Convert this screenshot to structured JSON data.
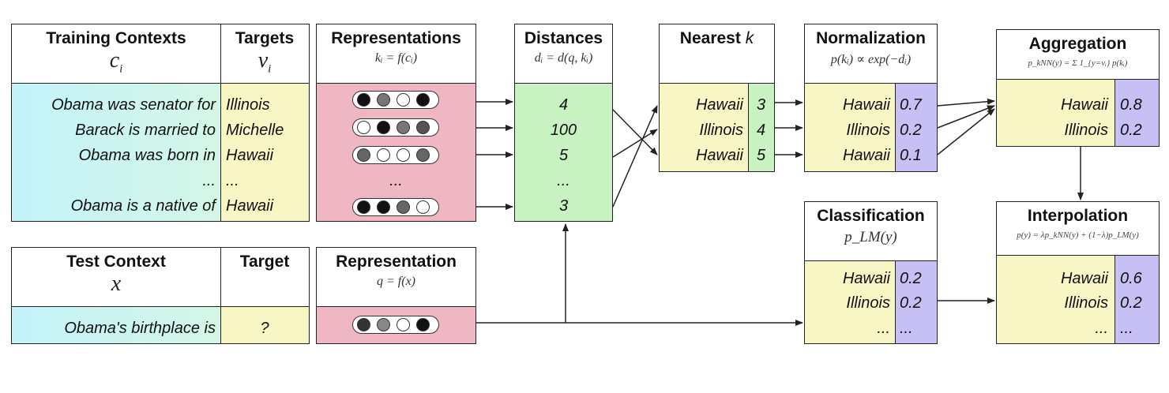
{
  "training": {
    "title": "Training Contexts",
    "symbol": "c",
    "symbol_sub": "i",
    "targets_title": "Targets",
    "targets_symbol": "v",
    "targets_symbol_sub": "i",
    "contexts": [
      "Obama was senator for",
      "Barack is married to",
      "Obama was born in",
      "...",
      "Obama is a native of"
    ],
    "targets": [
      "Illinois",
      "Michelle",
      "Hawaii",
      "...",
      "Hawaii"
    ]
  },
  "representations": {
    "title": "Representations",
    "formula": "kᵢ = f(cᵢ)",
    "ellipsis": "...",
    "pills": [
      [
        "#111",
        "#777",
        "#fff",
        "#111"
      ],
      [
        "#fff",
        "#111",
        "#777",
        "#555"
      ],
      [
        "#666",
        "#fff",
        "#fff",
        "#666"
      ],
      [
        "#111",
        "#111",
        "#666",
        "#fff"
      ]
    ]
  },
  "distances": {
    "title": "Distances",
    "formula": "dᵢ = d(q, kᵢ)",
    "values": [
      "4",
      "100",
      "5",
      "...",
      "3"
    ]
  },
  "nearest": {
    "title": "Nearest",
    "title_k": "k",
    "rows": [
      {
        "label": "Hawaii",
        "value": "3"
      },
      {
        "label": "Illinois",
        "value": "4"
      },
      {
        "label": "Hawaii",
        "value": "5"
      }
    ]
  },
  "normalization": {
    "title": "Normalization",
    "formula": "p(kᵢ) ∝ exp(−dᵢ)",
    "rows": [
      {
        "label": "Hawaii",
        "value": "0.7"
      },
      {
        "label": "Illinois",
        "value": "0.2"
      },
      {
        "label": "Hawaii",
        "value": "0.1"
      }
    ]
  },
  "aggregation": {
    "title": "Aggregation",
    "formula": "p_kNN(y) = Σ 1_{y=vᵢ} p(kᵢ)",
    "rows": [
      {
        "label": "Hawaii",
        "value": "0.8"
      },
      {
        "label": "Illinois",
        "value": "0.2"
      }
    ]
  },
  "test": {
    "title": "Test Context",
    "symbol": "x",
    "target_title": "Target",
    "context": "Obama's birthplace is",
    "target": "?"
  },
  "representation": {
    "title": "Representation",
    "formula": "q = f(x)",
    "pill": [
      "#333",
      "#888",
      "#fff",
      "#111"
    ]
  },
  "classification": {
    "title": "Classification",
    "formula": "p_LM(y)",
    "rows": [
      {
        "label": "Hawaii",
        "value": "0.2"
      },
      {
        "label": "Illinois",
        "value": "0.2"
      },
      {
        "label": "...",
        "value": "..."
      }
    ]
  },
  "interpolation": {
    "title": "Interpolation",
    "formula": "p(y) = λp_kNN(y) + (1−λ)p_LM(y)",
    "rows": [
      {
        "label": "Hawaii",
        "value": "0.6"
      },
      {
        "label": "Illinois",
        "value": "0.2"
      },
      {
        "label": "...",
        "value": "..."
      }
    ]
  },
  "colors": {
    "cyan": "#c8f2f7",
    "yellow": "#f7f6c4",
    "pink": "#eeb7c2",
    "green": "#c8f2c2",
    "purple": "#c6c0f4"
  }
}
